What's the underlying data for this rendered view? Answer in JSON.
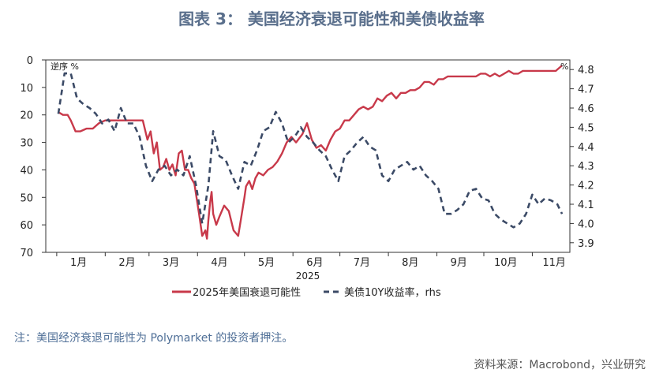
{
  "title": "图表 3： 美国经济衰退可能性和美债收益率",
  "note": "注：美国经济衰退可能性为 Polymarket 的投资者押注。",
  "source": "资料来源：Macrobond，兴业研究",
  "chart_data": {
    "type": "line",
    "xlabel": "2025",
    "x_tick_labels": [
      "1月",
      "2月",
      "3月",
      "4月",
      "5月",
      "6月",
      "7月",
      "8月",
      "9月",
      "10月",
      "11月"
    ],
    "left_axis": {
      "label": "逆序 %",
      "range": [
        0,
        70
      ],
      "reversed": true,
      "ticks": [
        0,
        10,
        20,
        30,
        40,
        50,
        60,
        70
      ]
    },
    "right_axis": {
      "label": "%",
      "range": [
        3.85,
        4.85
      ],
      "ticks": [
        3.9,
        4.0,
        4.1,
        4.2,
        4.3,
        4.4,
        4.5,
        4.6,
        4.7,
        4.8
      ]
    },
    "legend_position": "bottom",
    "colors": {
      "recession": "#c8394a",
      "yield": "#3b4a66"
    },
    "series": [
      {
        "name": "2025年美国衰退可能性",
        "axis": "left",
        "style": "solid",
        "x": [
          "2025-01-02",
          "2025-01-05",
          "2025-01-08",
          "2025-01-10",
          "2025-01-13",
          "2025-01-16",
          "2025-01-20",
          "2025-01-24",
          "2025-01-28",
          "2025-02-01",
          "2025-02-05",
          "2025-02-10",
          "2025-02-15",
          "2025-02-20",
          "2025-02-25",
          "2025-02-28",
          "2025-03-02",
          "2025-03-04",
          "2025-03-06",
          "2025-03-08",
          "2025-03-10",
          "2025-03-12",
          "2025-03-14",
          "2025-03-16",
          "2025-03-18",
          "2025-03-20",
          "2025-03-22",
          "2025-03-24",
          "2025-03-26",
          "2025-03-28",
          "2025-03-30",
          "2025-04-02",
          "2025-04-04",
          "2025-04-06",
          "2025-04-07",
          "2025-04-08",
          "2025-04-09",
          "2025-04-10",
          "2025-04-11",
          "2025-04-13",
          "2025-04-15",
          "2025-04-18",
          "2025-04-21",
          "2025-04-24",
          "2025-04-27",
          "2025-04-29",
          "2025-05-01",
          "2025-05-02",
          "2025-05-04",
          "2025-05-06",
          "2025-05-08",
          "2025-05-10",
          "2025-05-13",
          "2025-05-16",
          "2025-05-19",
          "2025-05-22",
          "2025-05-25",
          "2025-05-28",
          "2025-05-31",
          "2025-06-03",
          "2025-06-07",
          "2025-06-10",
          "2025-06-13",
          "2025-06-16",
          "2025-06-19",
          "2025-06-22",
          "2025-06-25",
          "2025-06-28",
          "2025-07-01",
          "2025-07-04",
          "2025-07-07",
          "2025-07-10",
          "2025-07-13",
          "2025-07-16",
          "2025-07-19",
          "2025-07-22",
          "2025-07-25",
          "2025-07-28",
          "2025-07-31",
          "2025-08-03",
          "2025-08-06",
          "2025-08-09",
          "2025-08-12",
          "2025-08-15",
          "2025-08-18",
          "2025-08-21",
          "2025-08-24",
          "2025-08-27",
          "2025-08-30",
          "2025-09-02",
          "2025-09-05",
          "2025-09-08",
          "2025-09-11",
          "2025-09-14",
          "2025-09-17",
          "2025-09-20",
          "2025-09-23",
          "2025-09-26",
          "2025-09-29",
          "2025-10-02",
          "2025-10-05",
          "2025-10-08",
          "2025-10-11",
          "2025-10-14",
          "2025-10-17",
          "2025-10-20",
          "2025-10-23",
          "2025-10-26",
          "2025-10-29",
          "2025-11-01",
          "2025-11-04",
          "2025-11-07",
          "2025-11-10",
          "2025-11-13",
          "2025-11-16",
          "2025-11-20"
        ],
        "values": [
          19,
          20,
          20,
          22,
          26,
          26,
          25,
          25,
          23,
          22,
          22,
          22,
          22,
          22,
          22,
          29,
          26,
          34,
          30,
          40,
          39,
          36,
          40,
          38,
          42,
          34,
          33,
          40,
          40,
          43,
          45,
          56,
          64,
          62,
          65,
          58,
          52,
          48,
          56,
          60,
          57,
          53,
          55,
          62,
          64,
          57,
          50,
          46,
          44,
          47,
          43,
          41,
          42,
          40,
          39,
          37,
          34,
          30,
          28,
          30,
          27,
          23,
          29,
          32,
          31,
          33,
          29,
          26,
          25,
          22,
          22,
          20,
          18,
          17,
          18,
          17,
          14,
          15,
          13,
          12,
          14,
          12,
          12,
          11,
          11,
          10,
          8,
          8,
          9,
          7,
          7,
          6,
          6,
          6,
          6,
          6,
          6,
          6,
          5,
          5,
          6,
          5,
          6,
          5,
          4,
          5,
          5,
          4,
          4,
          4,
          4,
          4,
          4,
          4,
          4,
          2
        ],
        "end_date": "2025-11-20"
      },
      {
        "name": "美债10Y收益率，rhs",
        "axis": "right",
        "style": "dashed",
        "x": [
          "2025-01-02",
          "2025-01-06",
          "2025-01-10",
          "2025-01-14",
          "2025-01-18",
          "2025-01-22",
          "2025-01-26",
          "2025-01-30",
          "2025-02-03",
          "2025-02-07",
          "2025-02-11",
          "2025-02-15",
          "2025-02-19",
          "2025-02-23",
          "2025-02-27",
          "2025-03-03",
          "2025-03-07",
          "2025-03-11",
          "2025-03-15",
          "2025-03-19",
          "2025-03-23",
          "2025-03-27",
          "2025-03-31",
          "2025-04-04",
          "2025-04-08",
          "2025-04-11",
          "2025-04-15",
          "2025-04-19",
          "2025-04-23",
          "2025-04-27",
          "2025-05-01",
          "2025-05-05",
          "2025-05-09",
          "2025-05-13",
          "2025-05-17",
          "2025-05-21",
          "2025-05-25",
          "2025-05-29",
          "2025-06-02",
          "2025-06-06",
          "2025-06-10",
          "2025-06-14",
          "2025-06-18",
          "2025-06-22",
          "2025-06-26",
          "2025-06-30",
          "2025-07-04",
          "2025-07-08",
          "2025-07-12",
          "2025-07-16",
          "2025-07-20",
          "2025-07-24",
          "2025-07-28",
          "2025-08-01",
          "2025-08-05",
          "2025-08-09",
          "2025-08-13",
          "2025-08-17",
          "2025-08-21",
          "2025-08-25",
          "2025-08-29",
          "2025-09-02",
          "2025-09-06",
          "2025-09-10",
          "2025-09-14",
          "2025-09-18",
          "2025-09-22",
          "2025-09-26",
          "2025-09-30",
          "2025-10-04",
          "2025-10-08",
          "2025-10-12",
          "2025-10-16",
          "2025-10-20",
          "2025-10-24",
          "2025-10-28",
          "2025-11-01",
          "2025-11-05",
          "2025-11-09",
          "2025-11-13",
          "2025-11-17",
          "2025-11-20"
        ],
        "values": [
          4.57,
          4.78,
          4.78,
          4.65,
          4.62,
          4.6,
          4.57,
          4.52,
          4.54,
          4.48,
          4.6,
          4.52,
          4.52,
          4.45,
          4.3,
          4.22,
          4.28,
          4.3,
          4.25,
          4.28,
          4.25,
          4.35,
          4.2,
          4.0,
          4.2,
          4.48,
          4.35,
          4.33,
          4.25,
          4.18,
          4.32,
          4.3,
          4.38,
          4.48,
          4.5,
          4.58,
          4.52,
          4.42,
          4.45,
          4.5,
          4.45,
          4.42,
          4.38,
          4.35,
          4.28,
          4.22,
          4.35,
          4.38,
          4.42,
          4.45,
          4.4,
          4.38,
          4.25,
          4.22,
          4.28,
          4.3,
          4.32,
          4.28,
          4.3,
          4.25,
          4.22,
          4.18,
          4.05,
          4.05,
          4.07,
          4.1,
          4.17,
          4.18,
          4.13,
          4.12,
          4.05,
          4.02,
          4.0,
          3.98,
          4.0,
          4.05,
          4.15,
          4.1,
          4.13,
          4.12,
          4.1,
          4.05
        ]
      }
    ]
  }
}
